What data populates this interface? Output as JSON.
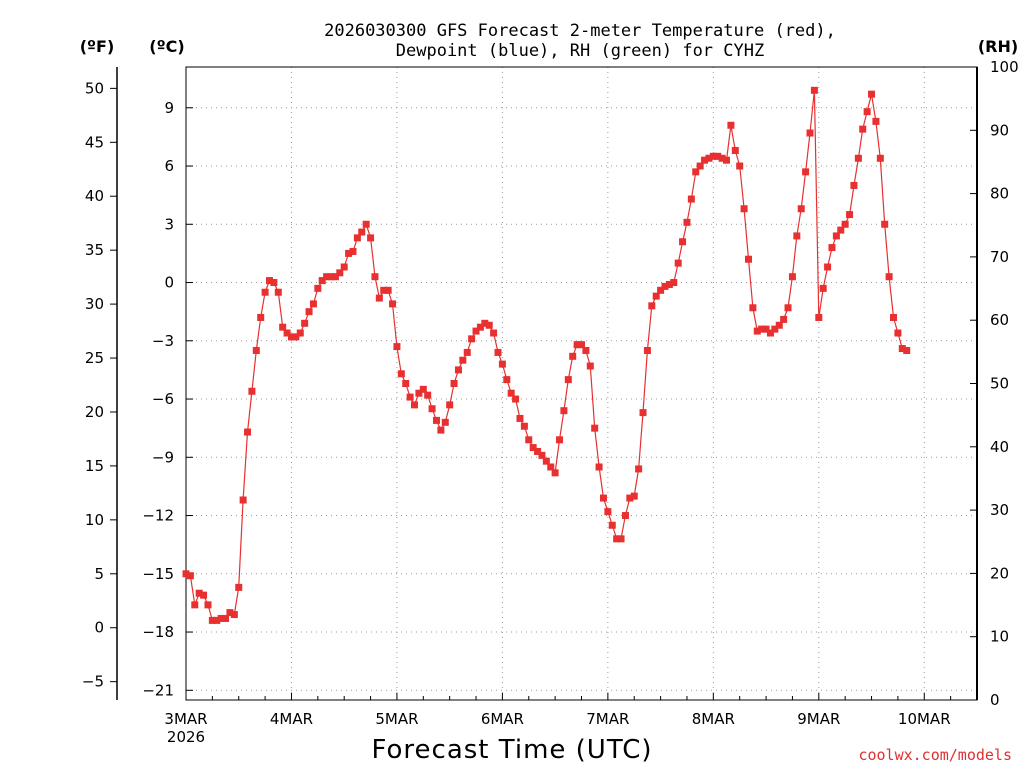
{
  "chart_data": {
    "type": "line",
    "title_lines": [
      "2026030300 GFS Forecast 2-meter Temperature (red),",
      "Dewpoint (blue), RH (green) for CYHZ"
    ],
    "xlabel": "Forecast Time (UTC)",
    "credit": "coolwx.com/models",
    "axis_units": {
      "fahrenheit": "(ºF)",
      "celsius": "(ºC)",
      "rh": "(RH)"
    },
    "x_ticks": [
      {
        "hour": 0,
        "label": "3MAR",
        "sublabel": "2026"
      },
      {
        "hour": 24,
        "label": "4MAR"
      },
      {
        "hour": 48,
        "label": "5MAR"
      },
      {
        "hour": 72,
        "label": "6MAR"
      },
      {
        "hour": 96,
        "label": "7MAR"
      },
      {
        "hour": 120,
        "label": "8MAR"
      },
      {
        "hour": 144,
        "label": "9MAR"
      },
      {
        "hour": 168,
        "label": "10MAR"
      }
    ],
    "xlim": [
      0,
      180
    ],
    "celsius_ylim": [
      -21.5,
      11.1
    ],
    "celsius_ticks": [
      9,
      6,
      3,
      0,
      -3,
      -6,
      -9,
      -12,
      -15,
      -18,
      -21
    ],
    "celsius_tick_labels": [
      "9",
      "6",
      "3",
      "0",
      "−3",
      "−6",
      "−9",
      "−12",
      "−15",
      "−18",
      "−21"
    ],
    "fahrenheit_ticks": [
      50,
      45,
      40,
      35,
      30,
      25,
      20,
      15,
      10,
      5,
      0,
      -5
    ],
    "fahrenheit_tick_labels": [
      "50",
      "45",
      "40",
      "35",
      "30",
      "25",
      "20",
      "15",
      "10",
      "5",
      "0",
      "−5"
    ],
    "rh_ylim": [
      0,
      100
    ],
    "rh_ticks": [
      100,
      90,
      80,
      70,
      60,
      50,
      40,
      30,
      20,
      10,
      0
    ],
    "series": [
      {
        "name": "Temperature",
        "unit": "C",
        "color": "#e83030",
        "marker": "square",
        "points": [
          [
            0,
            -15
          ],
          [
            1,
            -15.1
          ],
          [
            2,
            -16.6
          ],
          [
            3,
            -16.0
          ],
          [
            4,
            -16.1
          ],
          [
            5,
            -16.6
          ],
          [
            6,
            -17.4
          ],
          [
            7,
            -17.4
          ],
          [
            8,
            -17.3
          ],
          [
            9,
            -17.3
          ],
          [
            10,
            -17.0
          ],
          [
            11,
            -17.1
          ],
          [
            12,
            -15.7
          ],
          [
            13,
            -11.2
          ],
          [
            14,
            -7.7
          ],
          [
            15,
            -5.6
          ],
          [
            16,
            -3.5
          ],
          [
            17,
            -1.8
          ],
          [
            18,
            -0.5
          ],
          [
            19,
            0.1
          ],
          [
            20,
            0
          ],
          [
            21,
            -0.5
          ],
          [
            22,
            -2.3
          ],
          [
            23,
            -2.6
          ],
          [
            24,
            -2.8
          ],
          [
            25,
            -2.8
          ],
          [
            26,
            -2.6
          ],
          [
            27,
            -2.1
          ],
          [
            28,
            -1.5
          ],
          [
            29,
            -1.1
          ],
          [
            30,
            -0.3
          ],
          [
            31,
            0.1
          ],
          [
            32,
            0.3
          ],
          [
            33,
            0.3
          ],
          [
            34,
            0.3
          ],
          [
            35,
            0.5
          ],
          [
            36,
            0.8
          ],
          [
            37,
            1.5
          ],
          [
            38,
            1.6
          ],
          [
            39,
            2.3
          ],
          [
            40,
            2.6
          ],
          [
            41,
            3.0
          ],
          [
            42,
            2.3
          ],
          [
            43,
            0.3
          ],
          [
            44,
            -0.8
          ],
          [
            45,
            -0.4
          ],
          [
            46,
            -0.4
          ],
          [
            47,
            -1.1
          ],
          [
            48,
            -3.3
          ],
          [
            49,
            -4.7
          ],
          [
            50,
            -5.2
          ],
          [
            51,
            -5.9
          ],
          [
            52,
            -6.3
          ],
          [
            53,
            -5.7
          ],
          [
            54,
            -5.5
          ],
          [
            55,
            -5.8
          ],
          [
            56,
            -6.5
          ],
          [
            57,
            -7.1
          ],
          [
            58,
            -7.6
          ],
          [
            59,
            -7.2
          ],
          [
            60,
            -6.3
          ],
          [
            61,
            -5.2
          ],
          [
            62,
            -4.5
          ],
          [
            63,
            -4.0
          ],
          [
            64,
            -3.6
          ],
          [
            65,
            -2.9
          ],
          [
            66,
            -2.5
          ],
          [
            67,
            -2.3
          ],
          [
            68,
            -2.1
          ],
          [
            69,
            -2.2
          ],
          [
            70,
            -2.6
          ],
          [
            71,
            -3.6
          ],
          [
            72,
            -4.2
          ],
          [
            73,
            -5.0
          ],
          [
            74,
            -5.7
          ],
          [
            75,
            -6.0
          ],
          [
            76,
            -7.0
          ],
          [
            77,
            -7.4
          ],
          [
            78,
            -8.1
          ],
          [
            79,
            -8.5
          ],
          [
            80,
            -8.7
          ],
          [
            81,
            -8.9
          ],
          [
            82,
            -9.2
          ],
          [
            83,
            -9.5
          ],
          [
            84,
            -9.8
          ],
          [
            85,
            -8.1
          ],
          [
            86,
            -6.6
          ],
          [
            87,
            -5.0
          ],
          [
            88,
            -3.8
          ],
          [
            89,
            -3.2
          ],
          [
            90,
            -3.2
          ],
          [
            91,
            -3.5
          ],
          [
            92,
            -4.3
          ],
          [
            93,
            -7.5
          ],
          [
            94,
            -9.5
          ],
          [
            95,
            -11.1
          ],
          [
            96,
            -11.8
          ],
          [
            97,
            -12.5
          ],
          [
            98,
            -13.2
          ],
          [
            99,
            -13.2
          ],
          [
            100,
            -12.0
          ],
          [
            101,
            -11.1
          ],
          [
            102,
            -11.0
          ],
          [
            103,
            -9.6
          ],
          [
            104,
            -6.7
          ],
          [
            105,
            -3.5
          ],
          [
            106,
            -1.2
          ],
          [
            107,
            -0.7
          ],
          [
            108,
            -0.4
          ],
          [
            109,
            -0.2
          ],
          [
            110,
            -0.1
          ],
          [
            111,
            0
          ],
          [
            112,
            1.0
          ],
          [
            113,
            2.1
          ],
          [
            114,
            3.1
          ],
          [
            115,
            4.3
          ],
          [
            116,
            5.7
          ],
          [
            117,
            6.0
          ],
          [
            118,
            6.3
          ],
          [
            119,
            6.4
          ],
          [
            120,
            6.5
          ],
          [
            121,
            6.5
          ],
          [
            122,
            6.4
          ],
          [
            123,
            6.3
          ],
          [
            124,
            8.1
          ],
          [
            125,
            6.8
          ],
          [
            126,
            6.0
          ],
          [
            127,
            3.8
          ],
          [
            128,
            1.2
          ],
          [
            129,
            -1.3
          ],
          [
            130,
            -2.5
          ],
          [
            131,
            -2.4
          ],
          [
            132,
            -2.4
          ],
          [
            133,
            -2.6
          ],
          [
            134,
            -2.4
          ],
          [
            135,
            -2.2
          ],
          [
            136,
            -1.9
          ],
          [
            137,
            -1.3
          ],
          [
            138,
            0.3
          ],
          [
            139,
            2.4
          ],
          [
            140,
            3.8
          ],
          [
            141,
            5.7
          ],
          [
            142,
            7.7
          ],
          [
            143,
            9.9
          ],
          [
            144,
            -1.8
          ],
          [
            145,
            -0.3
          ],
          [
            146,
            0.8
          ],
          [
            147,
            1.8
          ],
          [
            148,
            2.4
          ],
          [
            149,
            2.7
          ],
          [
            150,
            3.0
          ],
          [
            151,
            3.5
          ],
          [
            152,
            5.0
          ],
          [
            153,
            6.4
          ],
          [
            154,
            7.9
          ],
          [
            155,
            8.8
          ],
          [
            156,
            9.7
          ],
          [
            157,
            8.3
          ],
          [
            158,
            6.4
          ],
          [
            159,
            3.0
          ],
          [
            160,
            0.3
          ],
          [
            161,
            -1.8
          ],
          [
            162,
            -2.6
          ],
          [
            163,
            -3.4
          ],
          [
            164,
            -3.5
          ]
        ]
      },
      {
        "name": "Dewpoint",
        "unit": "C",
        "color": "#2040e0",
        "marker": "plus",
        "points": []
      },
      {
        "name": "RH",
        "unit": "%",
        "color": "#20c020",
        "marker": "open-square",
        "points": []
      }
    ]
  }
}
